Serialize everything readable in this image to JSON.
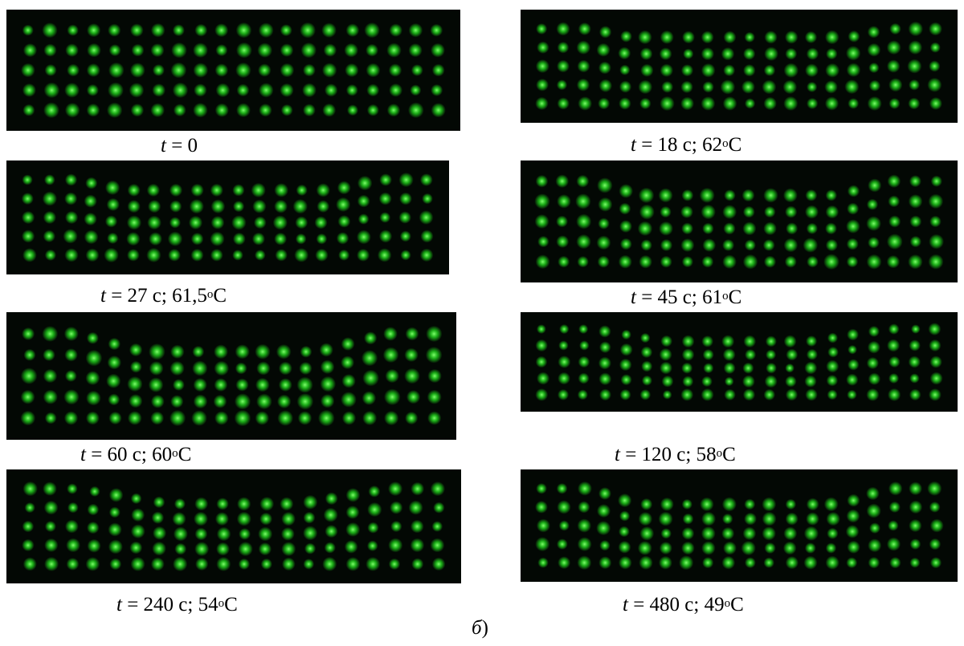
{
  "figure": {
    "label_letter": "б",
    "label_paren": ")"
  },
  "panels": [
    {
      "t_label": "t",
      "caption": " = 0",
      "temp": "",
      "dip": 0,
      "transition_width": 0
    },
    {
      "t_label": "t",
      "caption": " = 18 c; 62",
      "temp": "o",
      "unit": "C",
      "dip": 0.45,
      "transition_width": 0.1
    },
    {
      "t_label": "t",
      "caption": " = 27 c; 61,5",
      "temp": "o",
      "unit": "C",
      "dip": 0.55,
      "transition_width": 0.12
    },
    {
      "t_label": "t",
      "caption": " = 45 c; 61",
      "temp": "o",
      "unit": "C",
      "dip": 0.7,
      "transition_width": 0.13
    },
    {
      "t_label": "t",
      "caption": " = 60 c; 60",
      "temp": "o",
      "unit": "C",
      "dip": 0.85,
      "transition_width": 0.16
    },
    {
      "t_label": "t",
      "caption": " = 120 c; 58",
      "temp": "o",
      "unit": "C",
      "dip": 0.75,
      "transition_width": 0.2
    },
    {
      "t_label": "t",
      "caption": " = 240 c; 54",
      "temp": "o",
      "unit": "C",
      "dip": 0.8,
      "transition_width": 0.22
    },
    {
      "t_label": "t",
      "caption": " = 480 c; 49",
      "temp": "o",
      "unit": "C",
      "dip": 0.85,
      "transition_width": 0.12
    }
  ],
  "colors": {
    "background": "#030804",
    "dot_core": "#7dff6a",
    "dot_glow": "#1fc81a"
  }
}
